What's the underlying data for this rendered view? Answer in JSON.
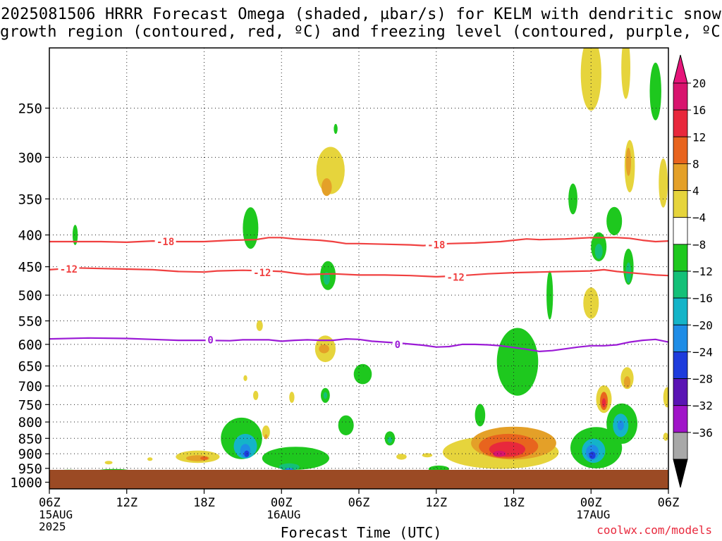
{
  "title": {
    "line1": "2025081506 HRRR Forecast Omega (shaded, µbar/s) for KELM with dendritic snow",
    "line2": "growth region (contoured, red, ºC) and freezing level (contoured, purple, ºC)"
  },
  "credit": "coolwx.com/models",
  "chart_data": {
    "type": "heatmap",
    "xlabel": "Forecast Time (UTC)",
    "ylabel": "",
    "x_range_hours": [
      0,
      48
    ],
    "y_range_hPa": [
      1025,
      200
    ],
    "y_scale": "log-pressure",
    "grid": true,
    "y_ticks": [
      250,
      300,
      350,
      400,
      450,
      500,
      550,
      600,
      650,
      700,
      750,
      800,
      850,
      900,
      950,
      1000
    ],
    "x_ticks": [
      {
        "hour": 0,
        "label": "06Z",
        "sub": [
          "15AUG",
          "2025"
        ]
      },
      {
        "hour": 6,
        "label": "12Z",
        "sub": []
      },
      {
        "hour": 12,
        "label": "18Z",
        "sub": []
      },
      {
        "hour": 18,
        "label": "00Z",
        "sub": [
          "16AUG"
        ]
      },
      {
        "hour": 24,
        "label": "06Z",
        "sub": []
      },
      {
        "hour": 30,
        "label": "12Z",
        "sub": []
      },
      {
        "hour": 36,
        "label": "18Z",
        "sub": []
      },
      {
        "hour": 42,
        "label": "00Z",
        "sub": [
          "17AUG"
        ]
      },
      {
        "hour": 48,
        "label": "06Z",
        "sub": []
      }
    ],
    "colorbar": {
      "levels": [
        "20",
        "16",
        "12",
        "8",
        "4",
        "−4",
        "−8",
        "−12",
        "−16",
        "−20",
        "−24",
        "−28",
        "−32",
        "−36"
      ],
      "colors": [
        "#d8146e",
        "#e8283c",
        "#e8641e",
        "#e4a028",
        "#e6d43c",
        "#ffffff",
        "#1ec81e",
        "#14c078",
        "#14b4c8",
        "#1e8ce6",
        "#1e3cdc",
        "#5a14b4",
        "#a014c8",
        "#a8a8a8"
      ],
      "top_color": "#e6157a",
      "bottom_color": "#000000"
    },
    "contours": [
      {
        "label": "-18",
        "color": "#f04040",
        "points": [
          [
            0,
            410
          ],
          [
            2,
            410
          ],
          [
            4,
            410
          ],
          [
            6,
            411
          ],
          [
            8,
            409
          ],
          [
            10,
            410
          ],
          [
            12,
            410
          ],
          [
            14,
            408
          ],
          [
            16,
            407
          ],
          [
            17,
            404
          ],
          [
            18,
            404
          ],
          [
            19,
            406
          ],
          [
            20,
            407
          ],
          [
            21,
            408
          ],
          [
            22,
            410
          ],
          [
            23,
            413
          ],
          [
            24,
            413
          ],
          [
            26,
            414
          ],
          [
            28,
            415
          ],
          [
            29,
            416
          ],
          [
            31,
            413
          ],
          [
            33,
            412
          ],
          [
            35,
            410
          ],
          [
            36,
            408
          ],
          [
            37,
            406
          ],
          [
            38,
            407
          ],
          [
            40,
            406
          ],
          [
            42,
            404
          ],
          [
            44,
            404
          ],
          [
            45,
            405
          ],
          [
            46,
            408
          ],
          [
            47,
            410
          ],
          [
            48,
            409
          ]
        ]
      },
      {
        "label": "-12",
        "color": "#f04040",
        "points": [
          [
            0,
            455
          ],
          [
            2,
            452
          ],
          [
            4,
            453
          ],
          [
            6,
            454
          ],
          [
            8,
            455
          ],
          [
            10,
            458
          ],
          [
            12,
            459
          ],
          [
            13,
            457
          ],
          [
            15,
            456
          ],
          [
            17,
            457
          ],
          [
            18,
            458
          ],
          [
            19,
            461
          ],
          [
            20,
            463
          ],
          [
            22,
            462
          ],
          [
            24,
            464
          ],
          [
            26,
            464
          ],
          [
            28,
            465
          ],
          [
            30,
            467
          ],
          [
            32,
            465
          ],
          [
            34,
            462
          ],
          [
            36,
            460
          ],
          [
            38,
            459
          ],
          [
            40,
            458
          ],
          [
            42,
            457
          ],
          [
            43,
            455
          ],
          [
            44,
            458
          ],
          [
            45,
            460
          ],
          [
            46,
            462
          ],
          [
            47,
            464
          ],
          [
            48,
            465
          ]
        ]
      },
      {
        "label": "0",
        "color": "#9b1bd6",
        "points": [
          [
            0,
            588
          ],
          [
            3,
            586
          ],
          [
            6,
            587
          ],
          [
            8,
            589
          ],
          [
            10,
            591
          ],
          [
            12,
            591
          ],
          [
            14,
            592
          ],
          [
            15,
            590
          ],
          [
            17,
            590
          ],
          [
            18,
            593
          ],
          [
            19,
            591
          ],
          [
            20,
            590
          ],
          [
            21,
            591
          ],
          [
            22,
            591
          ],
          [
            23,
            588
          ],
          [
            24,
            589
          ],
          [
            25,
            593
          ],
          [
            27,
            597
          ],
          [
            29,
            602
          ],
          [
            30,
            606
          ],
          [
            31,
            605
          ],
          [
            32,
            600
          ],
          [
            33,
            600
          ],
          [
            34,
            601
          ],
          [
            35,
            603
          ],
          [
            36,
            607
          ],
          [
            37,
            611
          ],
          [
            38,
            616
          ],
          [
            39,
            614
          ],
          [
            40,
            610
          ],
          [
            41,
            606
          ],
          [
            42,
            603
          ],
          [
            43,
            603
          ],
          [
            44,
            601
          ],
          [
            45,
            595
          ],
          [
            46,
            591
          ],
          [
            47,
            589
          ],
          [
            48,
            595
          ]
        ]
      }
    ],
    "contour_labels": [
      {
        "text": "-18",
        "hour": 9,
        "p": 410
      },
      {
        "text": "-18",
        "hour": 30,
        "p": 415
      },
      {
        "text": "-12",
        "hour": 1.5,
        "p": 454
      },
      {
        "text": "-12",
        "hour": 16.5,
        "p": 460
      },
      {
        "text": "-12",
        "hour": 31.5,
        "p": 468
      },
      {
        "text": "0",
        "hour": 12.5,
        "p": 590
      },
      {
        "text": "0",
        "hour": 27,
        "p": 600
      }
    ],
    "omega_cells": [
      {
        "x": 2.0,
        "p": 400,
        "rx": 0.2,
        "h": 30,
        "v": -5
      },
      {
        "x": 15.6,
        "p": 390,
        "rx": 0.6,
        "h": 60,
        "v": -6
      },
      {
        "x": 21.8,
        "p": 315,
        "rx": 1.1,
        "h": 55,
        "v": 5
      },
      {
        "x": 21.5,
        "p": 335,
        "rx": 0.4,
        "h": 22,
        "v": 9
      },
      {
        "x": 22.2,
        "p": 270,
        "rx": 0.15,
        "h": 10,
        "v": -5
      },
      {
        "x": 21.6,
        "p": 465,
        "rx": 0.6,
        "h": 50,
        "v": -6
      },
      {
        "x": 21.5,
        "p": 470,
        "rx": 0.25,
        "h": 22,
        "v": -11
      },
      {
        "x": 16.3,
        "p": 560,
        "rx": 0.25,
        "h": 22,
        "v": 5
      },
      {
        "x": 21.4,
        "p": 610,
        "rx": 0.8,
        "h": 60,
        "v": 5
      },
      {
        "x": 21.3,
        "p": 610,
        "rx": 0.4,
        "h": 20,
        "v": 9
      },
      {
        "x": 21.4,
        "p": 725,
        "rx": 0.35,
        "h": 40,
        "v": -6
      },
      {
        "x": 21.4,
        "p": 725,
        "rx": 0.15,
        "h": 18,
        "v": -11
      },
      {
        "x": 14.9,
        "p": 850,
        "rx": 1.6,
        "h": 130,
        "v": -6
      },
      {
        "x": 15.2,
        "p": 875,
        "rx": 0.9,
        "h": 80,
        "v": -12
      },
      {
        "x": 15.2,
        "p": 890,
        "rx": 0.4,
        "h": 45,
        "v": -18
      },
      {
        "x": 15.3,
        "p": 900,
        "rx": 0.2,
        "h": 22,
        "v": -22
      },
      {
        "x": 11.5,
        "p": 910,
        "rx": 1.7,
        "h": 42,
        "v": 5
      },
      {
        "x": 11.5,
        "p": 915,
        "rx": 0.9,
        "h": 20,
        "v": 9
      },
      {
        "x": 12.0,
        "p": 915,
        "rx": 0.3,
        "h": 12,
        "v": 13
      },
      {
        "x": 7.8,
        "p": 918,
        "rx": 0.2,
        "h": 12,
        "v": 5
      },
      {
        "x": 4.6,
        "p": 930,
        "rx": 0.3,
        "h": 12,
        "v": 5
      },
      {
        "x": 19.1,
        "p": 915,
        "rx": 2.6,
        "h": 78,
        "v": -6
      },
      {
        "x": 18.6,
        "p": 945,
        "rx": 0.8,
        "h": 25,
        "v": -11
      },
      {
        "x": 18.6,
        "p": 955,
        "rx": 0.3,
        "h": 14,
        "v": -16
      },
      {
        "x": 16.8,
        "p": 830,
        "rx": 0.3,
        "h": 40,
        "v": 5
      },
      {
        "x": 16.8,
        "p": 845,
        "rx": 0.12,
        "h": 16,
        "v": 9
      },
      {
        "x": 16.0,
        "p": 725,
        "rx": 0.2,
        "h": 25,
        "v": 5
      },
      {
        "x": 15.2,
        "p": 680,
        "rx": 0.15,
        "h": 15,
        "v": 5
      },
      {
        "x": 18.8,
        "p": 730,
        "rx": 0.2,
        "h": 30,
        "v": 5
      },
      {
        "x": 24.3,
        "p": 670,
        "rx": 0.7,
        "h": 50,
        "v": -6
      },
      {
        "x": 23.0,
        "p": 810,
        "rx": 0.6,
        "h": 60,
        "v": -6
      },
      {
        "x": 26.4,
        "p": 850,
        "rx": 0.4,
        "h": 45,
        "v": -6
      },
      {
        "x": 26.4,
        "p": 855,
        "rx": 0.18,
        "h": 20,
        "v": -11
      },
      {
        "x": 33.4,
        "p": 780,
        "rx": 0.4,
        "h": 65,
        "v": -6
      },
      {
        "x": 27.3,
        "p": 910,
        "rx": 0.4,
        "h": 20,
        "v": 5
      },
      {
        "x": 29.3,
        "p": 905,
        "rx": 0.4,
        "h": 14,
        "v": 5
      },
      {
        "x": 1.5,
        "p": 967,
        "rx": 1.5,
        "h": 25,
        "v": -6
      },
      {
        "x": 5.0,
        "p": 962,
        "rx": 1.5,
        "h": 20,
        "v": -6
      },
      {
        "x": 30.2,
        "p": 952,
        "rx": 0.8,
        "h": 24,
        "v": -6
      },
      {
        "x": 35.0,
        "p": 895,
        "rx": 4.5,
        "h": 110,
        "v": 5
      },
      {
        "x": 36.0,
        "p": 865,
        "rx": 3.3,
        "h": 105,
        "v": 9
      },
      {
        "x": 35.6,
        "p": 875,
        "rx": 2.3,
        "h": 80,
        "v": 13
      },
      {
        "x": 35.5,
        "p": 885,
        "rx": 1.4,
        "h": 50,
        "v": 17
      },
      {
        "x": 34.9,
        "p": 900,
        "rx": 0.5,
        "h": 20,
        "v": 21
      },
      {
        "x": 36.3,
        "p": 640,
        "rx": 1.6,
        "h": 160,
        "v": -6
      },
      {
        "x": 38.8,
        "p": 500,
        "rx": 0.25,
        "h": 90,
        "v": -6
      },
      {
        "x": 40.6,
        "p": 350,
        "rx": 0.35,
        "h": 40,
        "v": -6
      },
      {
        "x": 42.0,
        "p": 220,
        "rx": 0.8,
        "h": 60,
        "v": 5
      },
      {
        "x": 44.7,
        "p": 215,
        "rx": 0.35,
        "h": 50,
        "v": 5
      },
      {
        "x": 45.0,
        "p": 310,
        "rx": 0.4,
        "h": 60,
        "v": 5
      },
      {
        "x": 44.9,
        "p": 305,
        "rx": 0.2,
        "h": 32,
        "v": 9
      },
      {
        "x": 42.6,
        "p": 418,
        "rx": 0.6,
        "h": 45,
        "v": -6
      },
      {
        "x": 42.6,
        "p": 425,
        "rx": 0.3,
        "h": 24,
        "v": -11
      },
      {
        "x": 43.8,
        "p": 380,
        "rx": 0.6,
        "h": 40,
        "v": -6
      },
      {
        "x": 44.9,
        "p": 450,
        "rx": 0.4,
        "h": 60,
        "v": -6
      },
      {
        "x": 44.9,
        "p": 460,
        "rx": 0.2,
        "h": 35,
        "v": -11
      },
      {
        "x": 47.0,
        "p": 235,
        "rx": 0.45,
        "h": 50,
        "v": -6
      },
      {
        "x": 47.6,
        "p": 330,
        "rx": 0.35,
        "h": 60,
        "v": 5
      },
      {
        "x": 43.0,
        "p": 735,
        "rx": 0.6,
        "h": 75,
        "v": 5
      },
      {
        "x": 43.0,
        "p": 740,
        "rx": 0.3,
        "h": 50,
        "v": 13
      },
      {
        "x": 43.0,
        "p": 745,
        "rx": 0.15,
        "h": 25,
        "v": 17
      },
      {
        "x": 44.8,
        "p": 680,
        "rx": 0.5,
        "h": 55,
        "v": 5
      },
      {
        "x": 44.8,
        "p": 690,
        "rx": 0.25,
        "h": 30,
        "v": 9
      },
      {
        "x": 42.4,
        "p": 880,
        "rx": 2.0,
        "h": 135,
        "v": -6
      },
      {
        "x": 42.2,
        "p": 890,
        "rx": 0.9,
        "h": 80,
        "v": -12
      },
      {
        "x": 42.1,
        "p": 895,
        "rx": 0.5,
        "h": 50,
        "v": -18
      },
      {
        "x": 42.1,
        "p": 905,
        "rx": 0.25,
        "h": 25,
        "v": -22
      },
      {
        "x": 44.4,
        "p": 805,
        "rx": 1.2,
        "h": 120,
        "v": -6
      },
      {
        "x": 44.3,
        "p": 810,
        "rx": 0.6,
        "h": 70,
        "v": -12
      },
      {
        "x": 44.3,
        "p": 810,
        "rx": 0.25,
        "h": 30,
        "v": -18
      },
      {
        "x": 42.0,
        "p": 515,
        "rx": 0.6,
        "h": 60,
        "v": 5
      },
      {
        "x": 47.9,
        "p": 730,
        "rx": 0.3,
        "h": 55,
        "v": 5
      },
      {
        "x": 47.8,
        "p": 845,
        "rx": 0.2,
        "h": 25,
        "v": 5
      }
    ]
  }
}
